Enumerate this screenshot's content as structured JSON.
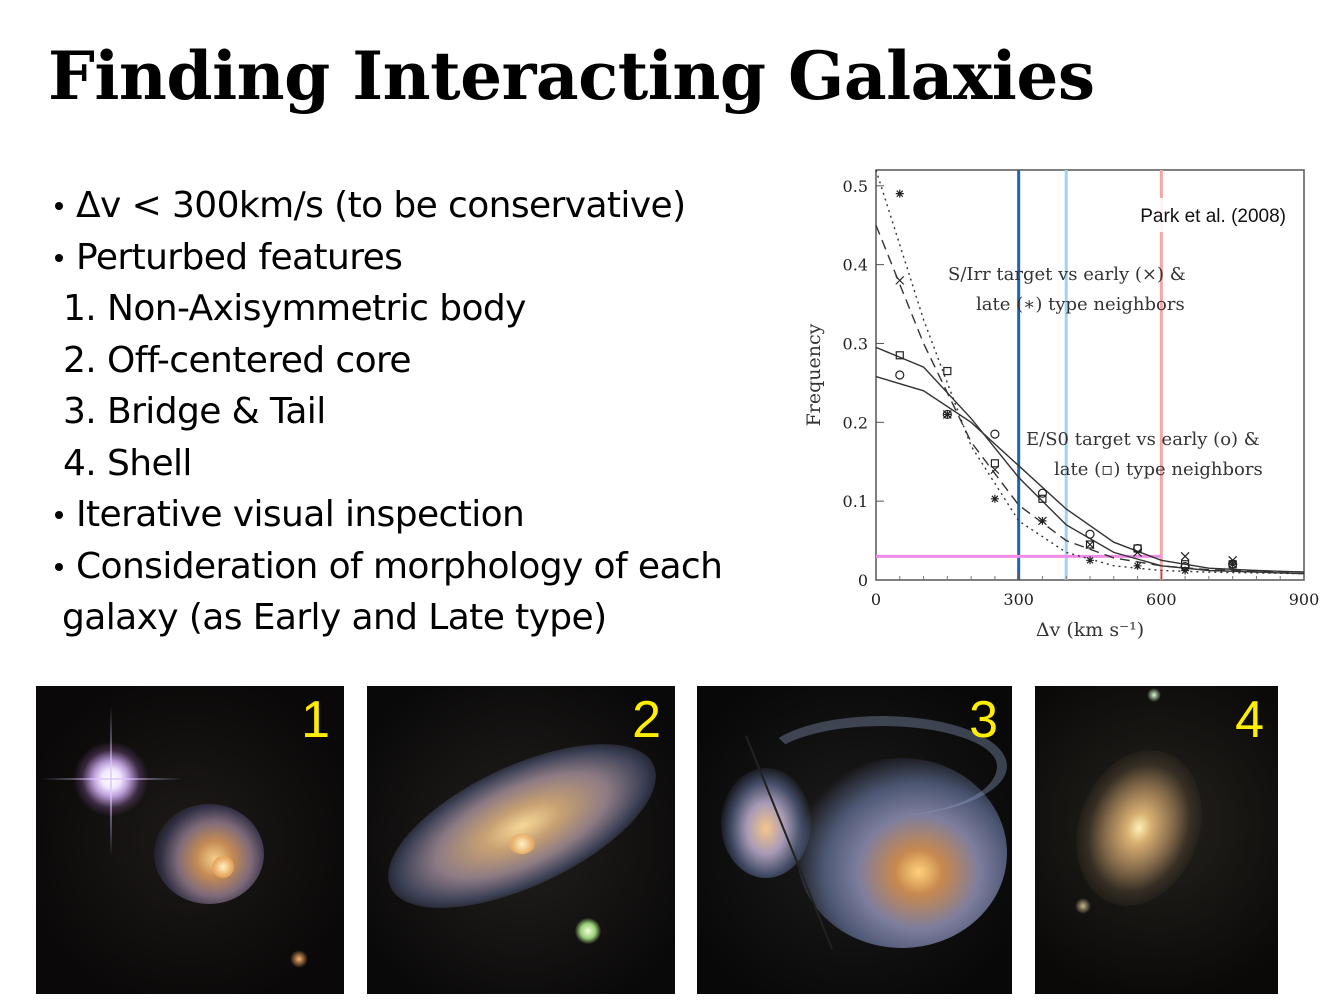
{
  "slide": {
    "title": "Finding Interacting Galaxies",
    "bullets": [
      {
        "kind": "bul",
        "text": "Δv < 300km/s (to be conservative)"
      },
      {
        "kind": "bul",
        "text": "Perturbed features"
      },
      {
        "kind": "sub",
        "text": "1. Non-Axisymmetric body"
      },
      {
        "kind": "sub",
        "text": "2. Off-centered core"
      },
      {
        "kind": "sub",
        "text": "3. Bridge & Tail"
      },
      {
        "kind": "sub",
        "text": "4. Shell"
      },
      {
        "kind": "bul",
        "text": "Iterative visual inspection"
      },
      {
        "kind": "bul",
        "text": "Consideration of morphology of each"
      },
      {
        "kind": "cont",
        "text": "galaxy (as Early and Late type)"
      }
    ]
  },
  "chart_data": {
    "type": "line",
    "citation": "Park et al. (2008)",
    "xlabel": "Δv (km s⁻¹)",
    "ylabel": "Frequency",
    "xlim": [
      0,
      900
    ],
    "ylim": [
      0,
      0.52
    ],
    "x_ticks": [
      0,
      300,
      600,
      900
    ],
    "x_tick_labels": [
      "0",
      "300",
      "600",
      "900"
    ],
    "y_ticks": [
      0,
      0.1,
      0.2,
      0.3,
      0.4,
      0.5
    ],
    "y_tick_labels": [
      "0",
      "0.1",
      "0.2",
      "0.3",
      "0.4",
      "0.5"
    ],
    "annotations": [
      {
        "lines": [
          "S/Irr target vs early (×) &",
          "late (∗) type neighbors"
        ]
      },
      {
        "lines": [
          "E/S0 target vs early (o) &",
          "late (▫) type neighbors"
        ]
      }
    ],
    "reference_lines": [
      {
        "orientation": "vertical",
        "x": 300,
        "color": "#1b64b8"
      },
      {
        "orientation": "vertical",
        "x": 400,
        "color": "#9fd3f2"
      },
      {
        "orientation": "vertical",
        "x": 600,
        "color": "#f4a6a6"
      },
      {
        "orientation": "horizontal",
        "y": 0.03,
        "x_range": [
          0,
          600
        ],
        "color": "#f08ce8"
      }
    ],
    "series": [
      {
        "marker": "circle",
        "curve": "solid",
        "x": [
          50,
          150,
          250,
          350,
          450,
          550,
          650,
          750
        ],
        "y": [
          0.26,
          0.21,
          0.185,
          0.11,
          0.058,
          0.04,
          0.017,
          0.02
        ],
        "fit": [
          [
            0,
            0.258
          ],
          [
            100,
            0.24
          ],
          [
            200,
            0.2
          ],
          [
            300,
            0.145
          ],
          [
            400,
            0.09
          ],
          [
            500,
            0.048
          ],
          [
            600,
            0.025
          ],
          [
            700,
            0.015
          ],
          [
            800,
            0.012
          ],
          [
            900,
            0.01
          ]
        ]
      },
      {
        "marker": "square",
        "curve": "solid",
        "x": [
          50,
          150,
          250,
          350,
          450,
          550,
          650,
          750
        ],
        "y": [
          0.285,
          0.265,
          0.148,
          0.103,
          0.045,
          0.04,
          0.02,
          0.02
        ],
        "fit": [
          [
            0,
            0.295
          ],
          [
            100,
            0.27
          ],
          [
            200,
            0.205
          ],
          [
            300,
            0.13
          ],
          [
            400,
            0.07
          ],
          [
            500,
            0.035
          ],
          [
            600,
            0.018
          ],
          [
            700,
            0.012
          ],
          [
            800,
            0.01
          ],
          [
            900,
            0.008
          ]
        ]
      },
      {
        "marker": "cross",
        "curve": "dashed",
        "x": [
          50,
          150,
          250,
          350,
          450,
          550,
          650,
          750
        ],
        "y": [
          0.38,
          0.21,
          0.14,
          0.075,
          0.045,
          0.035,
          0.03,
          0.025
        ],
        "fit": [
          [
            0,
            0.45
          ],
          [
            100,
            0.3
          ],
          [
            200,
            0.175
          ],
          [
            300,
            0.095
          ],
          [
            400,
            0.05
          ],
          [
            500,
            0.028
          ],
          [
            600,
            0.018
          ],
          [
            700,
            0.013
          ],
          [
            800,
            0.011
          ],
          [
            900,
            0.01
          ]
        ]
      },
      {
        "marker": "asterisk",
        "curve": "dotted",
        "x": [
          50,
          150,
          250,
          350,
          450,
          550,
          650,
          750
        ],
        "y": [
          0.49,
          0.21,
          0.103,
          0.075,
          0.025,
          0.018,
          0.012,
          0.02
        ],
        "fit": [
          [
            0,
            0.52
          ],
          [
            100,
            0.33
          ],
          [
            200,
            0.17
          ],
          [
            300,
            0.075
          ],
          [
            400,
            0.035
          ],
          [
            500,
            0.018
          ],
          [
            600,
            0.012
          ],
          [
            700,
            0.01
          ],
          [
            800,
            0.009
          ],
          [
            900,
            0.008
          ]
        ]
      }
    ]
  },
  "photos": [
    {
      "label": "1",
      "subject": "galaxy-non-axisymmetric"
    },
    {
      "label": "2",
      "subject": "galaxy-off-centered-core"
    },
    {
      "label": "3",
      "subject": "galaxy-bridge-and-tail"
    },
    {
      "label": "4",
      "subject": "galaxy-shell"
    }
  ]
}
